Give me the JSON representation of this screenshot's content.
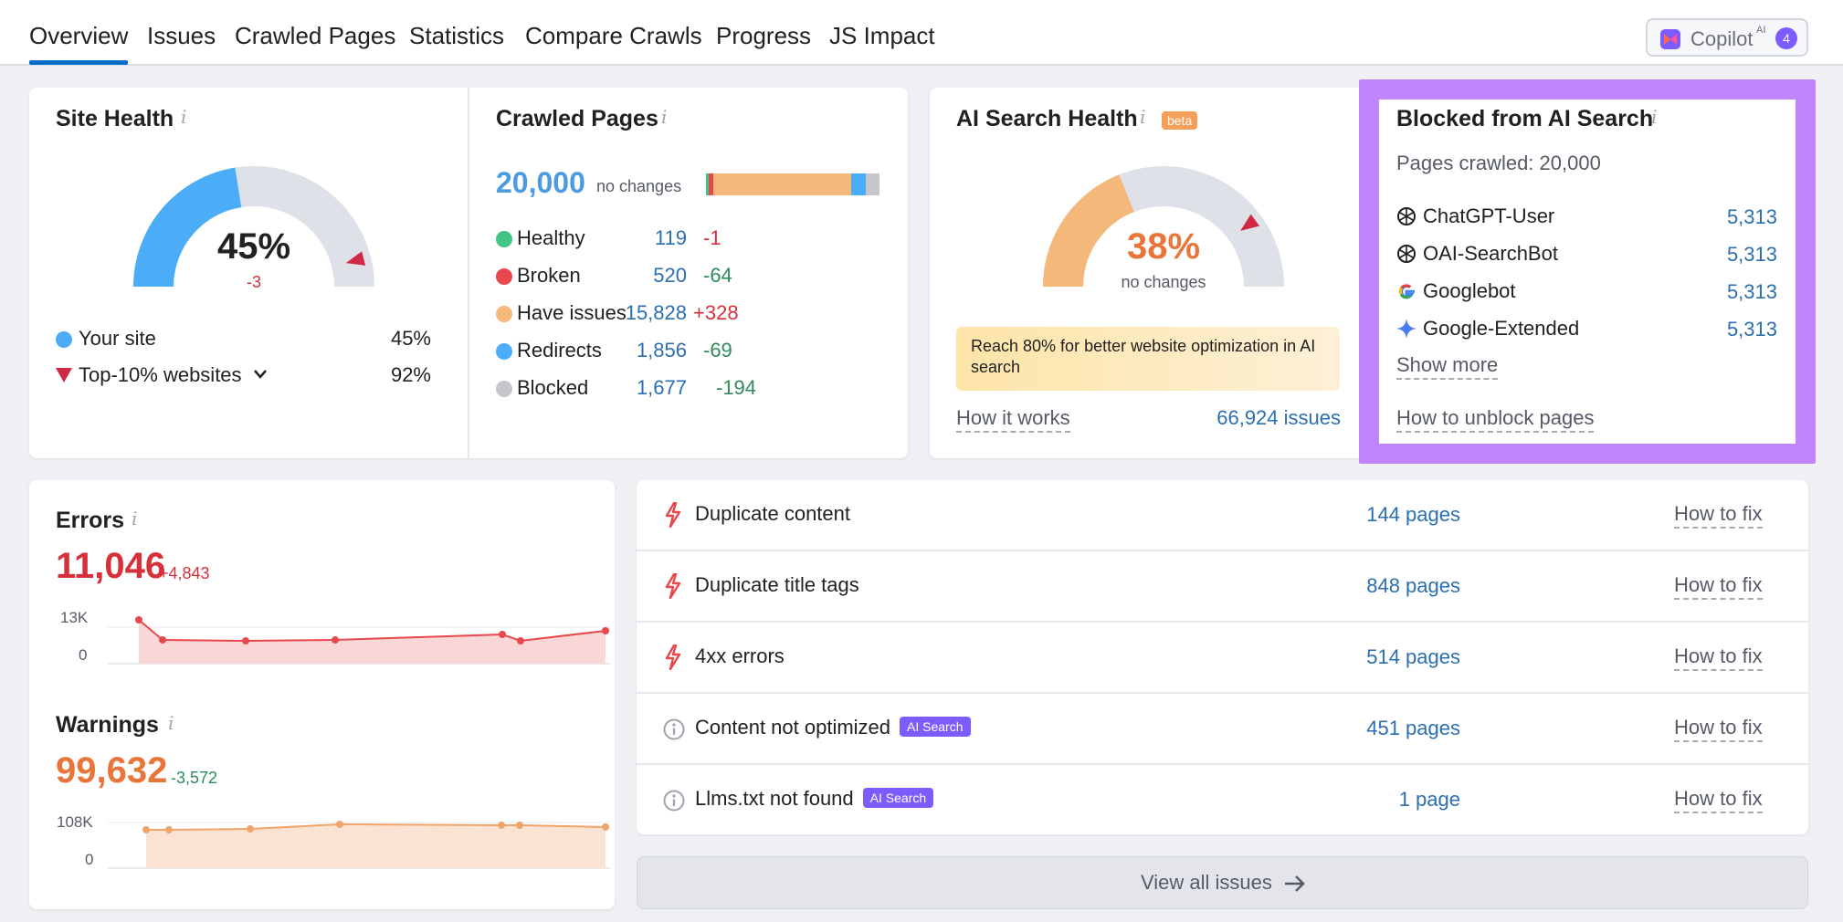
{
  "nav": {
    "tabs": [
      {
        "label": "Overview",
        "active": true
      },
      {
        "label": "Issues"
      },
      {
        "label": "Crawled Pages"
      },
      {
        "label": "Statistics"
      },
      {
        "label": "Compare Crawls"
      },
      {
        "label": "Progress"
      },
      {
        "label": "JS Impact"
      }
    ],
    "copilot": {
      "label": "Copilot",
      "sup": "AI",
      "count": "4"
    }
  },
  "site_health": {
    "title": "Site Health",
    "value_text": "45%",
    "value": 45,
    "delta": "-3",
    "top10_value": 92,
    "legend": [
      {
        "label": "Your site",
        "value": "45%"
      },
      {
        "label": "Top-10% websites",
        "value": "92%"
      }
    ],
    "colors": {
      "primary": "#4badf7",
      "track": "#dfe1e8",
      "marker": "#cf2945"
    }
  },
  "crawled_pages": {
    "title": "Crawled Pages",
    "total": "20,000",
    "total_note": "no changes",
    "rows": [
      {
        "label": "Healthy",
        "value": "119",
        "delta": "-1",
        "color": "#42c487",
        "delta_color": "#d6303a"
      },
      {
        "label": "Broken",
        "value": "520",
        "delta": "-64",
        "color": "#e8484d",
        "delta_color": "#2f8a5b"
      },
      {
        "label": "Have issues",
        "value": "15,828",
        "delta": "+328",
        "color": "#f5b87b",
        "delta_color": "#d6303a"
      },
      {
        "label": "Redirects",
        "value": "1,856",
        "delta": "-69",
        "color": "#4badf7",
        "delta_color": "#2f8a5b"
      },
      {
        "label": "Blocked",
        "value": "1,677",
        "delta": "-194",
        "color": "#c4c6cc",
        "delta_color": "#2f8a5b"
      }
    ]
  },
  "ai_health": {
    "title": "AI Search Health",
    "badge": "beta",
    "value_text": "38%",
    "value": 38,
    "note": "no changes",
    "banner": "Reach 80% for better website optimization in AI search",
    "how_it_works": "How it works",
    "issues_link": "66,924 issues",
    "colors": {
      "primary": "#f5b87b",
      "track": "#dfe1e8",
      "marker": "#cf2945"
    }
  },
  "blocked": {
    "title": "Blocked from AI Search",
    "subtitle": "Pages crawled: 20,000",
    "bots": [
      {
        "name": "ChatGPT-User",
        "value": "5,313",
        "icon": "openai-icon"
      },
      {
        "name": "OAI-SearchBot",
        "value": "5,313",
        "icon": "openai-icon"
      },
      {
        "name": "Googlebot",
        "value": "5,313",
        "icon": "google-icon"
      },
      {
        "name": "Google-Extended",
        "value": "5,313",
        "icon": "gemini-icon"
      }
    ],
    "show_more": "Show more",
    "unblock": "How to unblock pages",
    "highlight_color": "#c084fc"
  },
  "errors": {
    "title": "Errors",
    "value": "11,046",
    "delta": "+4,843",
    "axis": [
      "13K",
      "0"
    ]
  },
  "warnings": {
    "title": "Warnings",
    "value": "99,632",
    "delta": "-3,572",
    "axis": [
      "108K",
      "0"
    ]
  },
  "issues": [
    {
      "name": "Duplicate content",
      "pages": "144 pages",
      "fix": "How to fix",
      "type": "error"
    },
    {
      "name": "Duplicate title tags",
      "pages": "848 pages",
      "fix": "How to fix",
      "type": "error"
    },
    {
      "name": "4xx errors",
      "pages": "514 pages",
      "fix": "How to fix",
      "type": "error"
    },
    {
      "name": "Content not optimized",
      "badge": "AI Search",
      "pages": "451 pages",
      "fix": "How to fix",
      "type": "notice"
    },
    {
      "name": "Llms.txt not found",
      "badge": "AI Search",
      "pages": "1 page",
      "fix": "How to fix",
      "type": "notice"
    }
  ],
  "view_all": "View all issues"
}
